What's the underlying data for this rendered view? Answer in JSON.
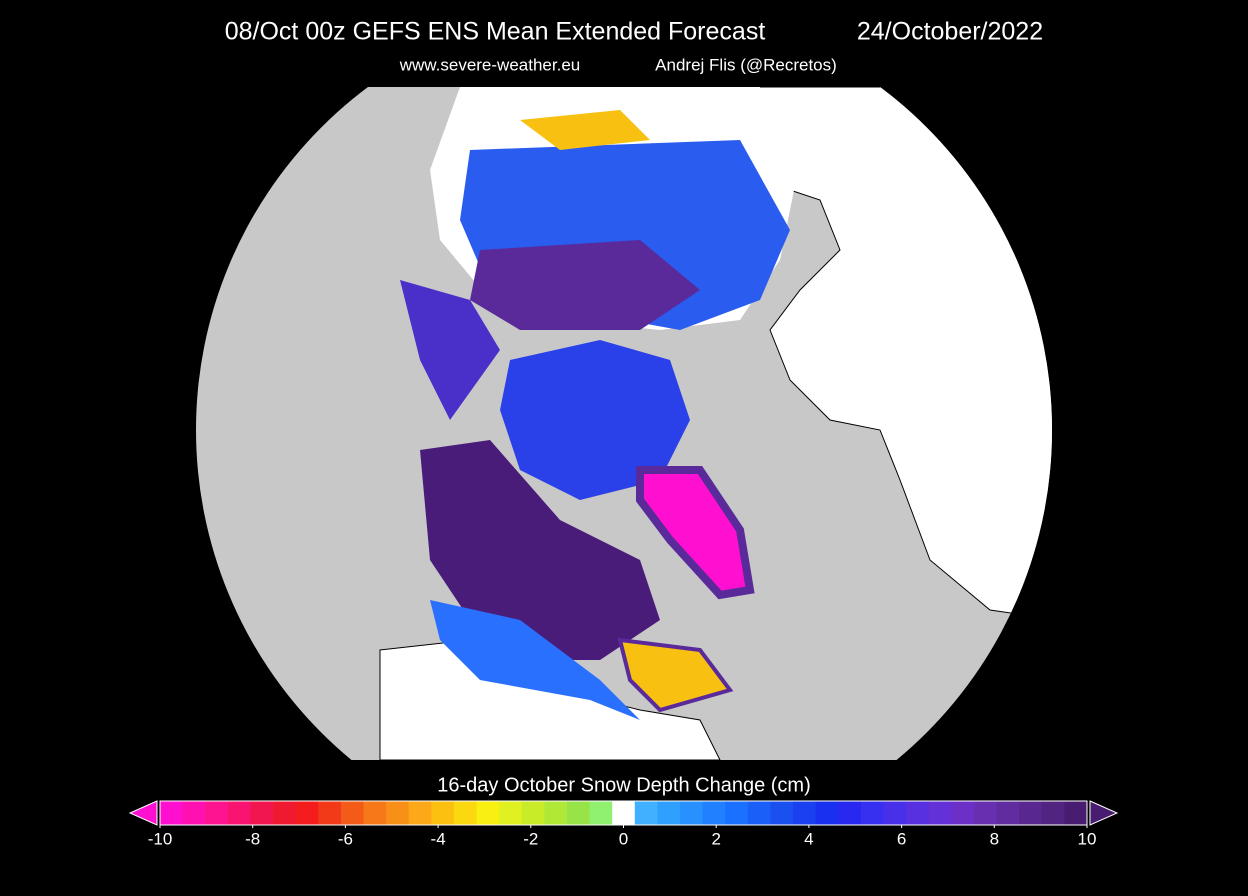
{
  "header": {
    "title": "08/Oct 00z  GEFS ENS Mean Extended Forecast",
    "date": "24/October/2022",
    "source": "www.severe-weather.eu",
    "author": "Andrej Flis (@Recretos)"
  },
  "colorbar": {
    "label": "16-day October Snow Depth Change (cm)",
    "lim": [
      -10,
      10
    ],
    "ticks": [
      -10,
      -8,
      -6,
      -4,
      -2,
      0,
      2,
      4,
      6,
      8,
      10
    ],
    "colors": [
      "#ff10d0",
      "#ff10b0",
      "#ff1490",
      "#f81470",
      "#f21650",
      "#f01a30",
      "#f41c1c",
      "#f23a18",
      "#f45a18",
      "#f67818",
      "#f89018",
      "#fca818",
      "#fcc010",
      "#fcd810",
      "#f8f010",
      "#e0f020",
      "#c8ec28",
      "#b0e838",
      "#98e448",
      "#90f070",
      "#ffffff",
      "#40b0ff",
      "#30a0ff",
      "#2890ff",
      "#2080ff",
      "#1a70ff",
      "#1a60f8",
      "#1a50f0",
      "#1a40f0",
      "#1a30f0",
      "#2828f0",
      "#3830f0",
      "#4830e8",
      "#5830e0",
      "#6430d8",
      "#6c30c8",
      "#6830b0",
      "#602ca0",
      "#582890",
      "#502480",
      "#481c70"
    ]
  }
}
